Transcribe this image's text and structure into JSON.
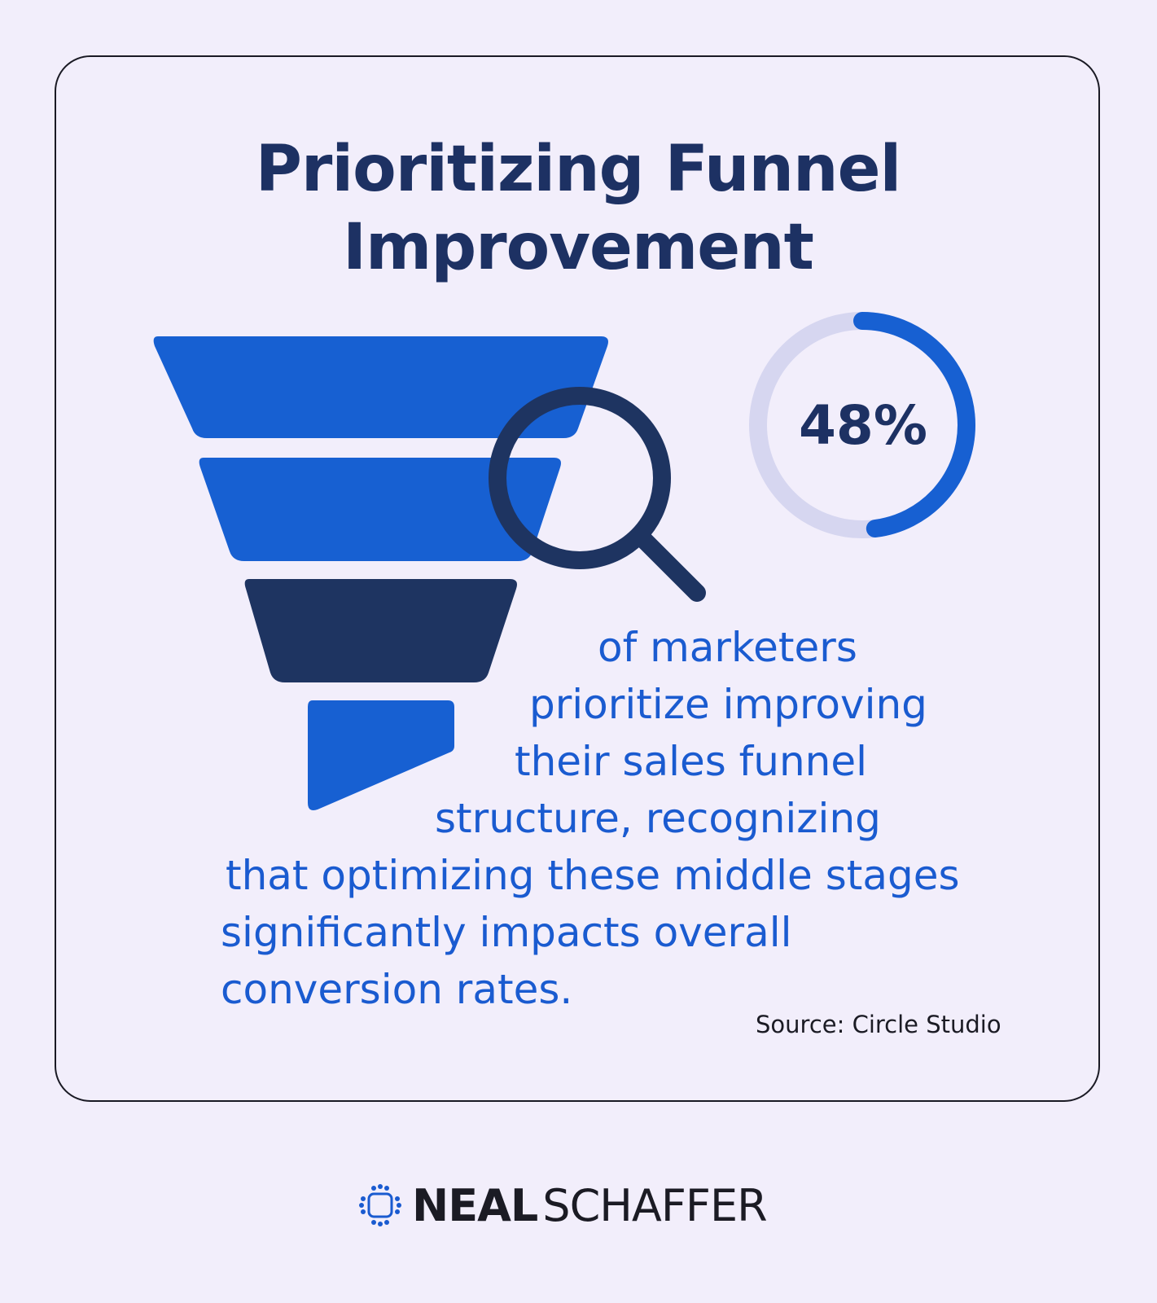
{
  "title": {
    "line1": "Prioritizing Funnel",
    "line2": "Improvement"
  },
  "stat": {
    "percent_label": "48%",
    "progress_fraction": 0.48
  },
  "description": {
    "lines": [
      "of marketers",
      "prioritize improving",
      "their sales funnel",
      "structure, recognizing",
      "that optimizing these middle stages",
      "significantly impacts overall",
      "conversion rates."
    ]
  },
  "source": "Source: Circle Studio",
  "brand": {
    "name_bold": "NEAL",
    "name_light": "SCHAFFER",
    "icon": "chip-logo-icon"
  },
  "icons": {
    "funnel": "funnel-icon",
    "magnifier": "magnifying-glass-icon",
    "ring": "progress-ring"
  },
  "colors": {
    "background": "#f2eefb",
    "title": "#1d3163",
    "accent_blue": "#1760d2",
    "dark_navy": "#1e3461",
    "ring_track": "#d6d6f0",
    "body_text": "#1a5bd0"
  }
}
